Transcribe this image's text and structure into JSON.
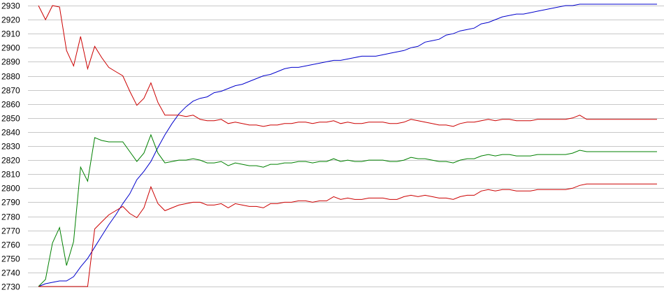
{
  "chart_data": {
    "type": "line",
    "title": "",
    "xlabel": "",
    "ylabel": "",
    "ylim": [
      2730,
      2930
    ],
    "yticks": [
      2930,
      2920,
      2910,
      2900,
      2890,
      2880,
      2870,
      2860,
      2850,
      2840,
      2830,
      2820,
      2810,
      2800,
      2790,
      2780,
      2770,
      2760,
      2750,
      2740,
      2730
    ],
    "grid": true,
    "legend": "none",
    "x": [
      0,
      1,
      2,
      3,
      4,
      5,
      6,
      7,
      8,
      9,
      10,
      11,
      12,
      13,
      14,
      15,
      16,
      17,
      18,
      19,
      20,
      21,
      22,
      23,
      24,
      25,
      26,
      27,
      28,
      29,
      30,
      31,
      32,
      33,
      34,
      35,
      36,
      37,
      38,
      39,
      40,
      41,
      42,
      43,
      44,
      45,
      46,
      47,
      48,
      49,
      50,
      51,
      52,
      53,
      54,
      55,
      56,
      57,
      58,
      59,
      60,
      61,
      62,
      63,
      64,
      65,
      66,
      67,
      68,
      69,
      70,
      71,
      72,
      73,
      74,
      75,
      76,
      77,
      78,
      79,
      80,
      81,
      82,
      83,
      84,
      85,
      86,
      87,
      88
    ],
    "series": [
      {
        "color": "#0000cc",
        "values": [
          2730,
          2732,
          2733,
          2734,
          2734,
          2737,
          2744,
          2750,
          2758,
          2766,
          2774,
          2781,
          2789,
          2796,
          2806,
          2812,
          2819,
          2829,
          2838,
          2846,
          2853,
          2858,
          2862,
          2864,
          2865,
          2868,
          2869,
          2871,
          2873,
          2874,
          2876,
          2878,
          2880,
          2881,
          2883,
          2885,
          2886,
          2886,
          2887,
          2888,
          2889,
          2890,
          2891,
          2891,
          2892,
          2893,
          2894,
          2894,
          2894,
          2895,
          2896,
          2897,
          2898,
          2900,
          2901,
          2904,
          2905,
          2906,
          2909,
          2910,
          2912,
          2913,
          2914,
          2917,
          2918,
          2920,
          2922,
          2923,
          2924,
          2924,
          2925,
          2926,
          2927,
          2928,
          2929,
          2930,
          2930,
          2931,
          2931,
          2931,
          2931,
          2931,
          2931,
          2931,
          2931,
          2931,
          2931,
          2931,
          2931
        ]
      },
      {
        "color": "#cc0000",
        "values": [
          2930,
          2920,
          2930,
          2929,
          2898,
          2887,
          2908,
          2885,
          2901,
          2893,
          2886,
          2883,
          2880,
          2869,
          2859,
          2864,
          2875,
          2861,
          2852,
          2852,
          2852,
          2851,
          2852,
          2849,
          2848,
          2848,
          2849,
          2846,
          2847,
          2846,
          2845,
          2845,
          2844,
          2845,
          2845,
          2846,
          2846,
          2847,
          2847,
          2846,
          2847,
          2847,
          2848,
          2846,
          2847,
          2846,
          2846,
          2847,
          2847,
          2847,
          2846,
          2846,
          2847,
          2849,
          2848,
          2847,
          2846,
          2845,
          2845,
          2844,
          2846,
          2847,
          2847,
          2848,
          2849,
          2848,
          2849,
          2849,
          2848,
          2848,
          2848,
          2849,
          2849,
          2849,
          2849,
          2849,
          2850,
          2852,
          2849,
          2849,
          2849,
          2849,
          2849,
          2849,
          2849,
          2849,
          2849,
          2849,
          2849
        ]
      },
      {
        "color": "#008000",
        "values": [
          2730,
          2735,
          2761,
          2772,
          2745,
          2762,
          2815,
          2805,
          2836,
          2834,
          2833,
          2833,
          2833,
          2826,
          2819,
          2825,
          2838,
          2825,
          2818,
          2819,
          2820,
          2820,
          2821,
          2820,
          2818,
          2818,
          2819,
          2816,
          2818,
          2817,
          2816,
          2816,
          2815,
          2817,
          2817,
          2818,
          2818,
          2819,
          2819,
          2818,
          2819,
          2819,
          2821,
          2819,
          2820,
          2819,
          2819,
          2820,
          2820,
          2820,
          2819,
          2819,
          2820,
          2822,
          2821,
          2821,
          2820,
          2819,
          2819,
          2818,
          2820,
          2821,
          2821,
          2823,
          2824,
          2823,
          2824,
          2824,
          2823,
          2823,
          2823,
          2824,
          2824,
          2824,
          2824,
          2824,
          2825,
          2827,
          2826,
          2826,
          2826,
          2826,
          2826,
          2826,
          2826,
          2826,
          2826,
          2826,
          2826
        ]
      },
      {
        "color": "#cc0000",
        "values": [
          2730,
          2730,
          2730,
          2730,
          2730,
          2730,
          2730,
          2730,
          2771,
          2776,
          2781,
          2784,
          2787,
          2782,
          2779,
          2786,
          2801,
          2789,
          2784,
          2786,
          2788,
          2789,
          2790,
          2790,
          2788,
          2788,
          2789,
          2786,
          2789,
          2788,
          2787,
          2787,
          2786,
          2789,
          2789,
          2790,
          2790,
          2791,
          2791,
          2790,
          2791,
          2791,
          2794,
          2792,
          2793,
          2792,
          2792,
          2793,
          2793,
          2793,
          2792,
          2792,
          2794,
          2795,
          2794,
          2795,
          2794,
          2793,
          2793,
          2792,
          2794,
          2795,
          2795,
          2798,
          2799,
          2798,
          2799,
          2799,
          2798,
          2798,
          2798,
          2799,
          2799,
          2799,
          2799,
          2799,
          2800,
          2802,
          2803,
          2803,
          2803,
          2803,
          2803,
          2803,
          2803,
          2803,
          2803,
          2803,
          2803
        ]
      }
    ]
  }
}
